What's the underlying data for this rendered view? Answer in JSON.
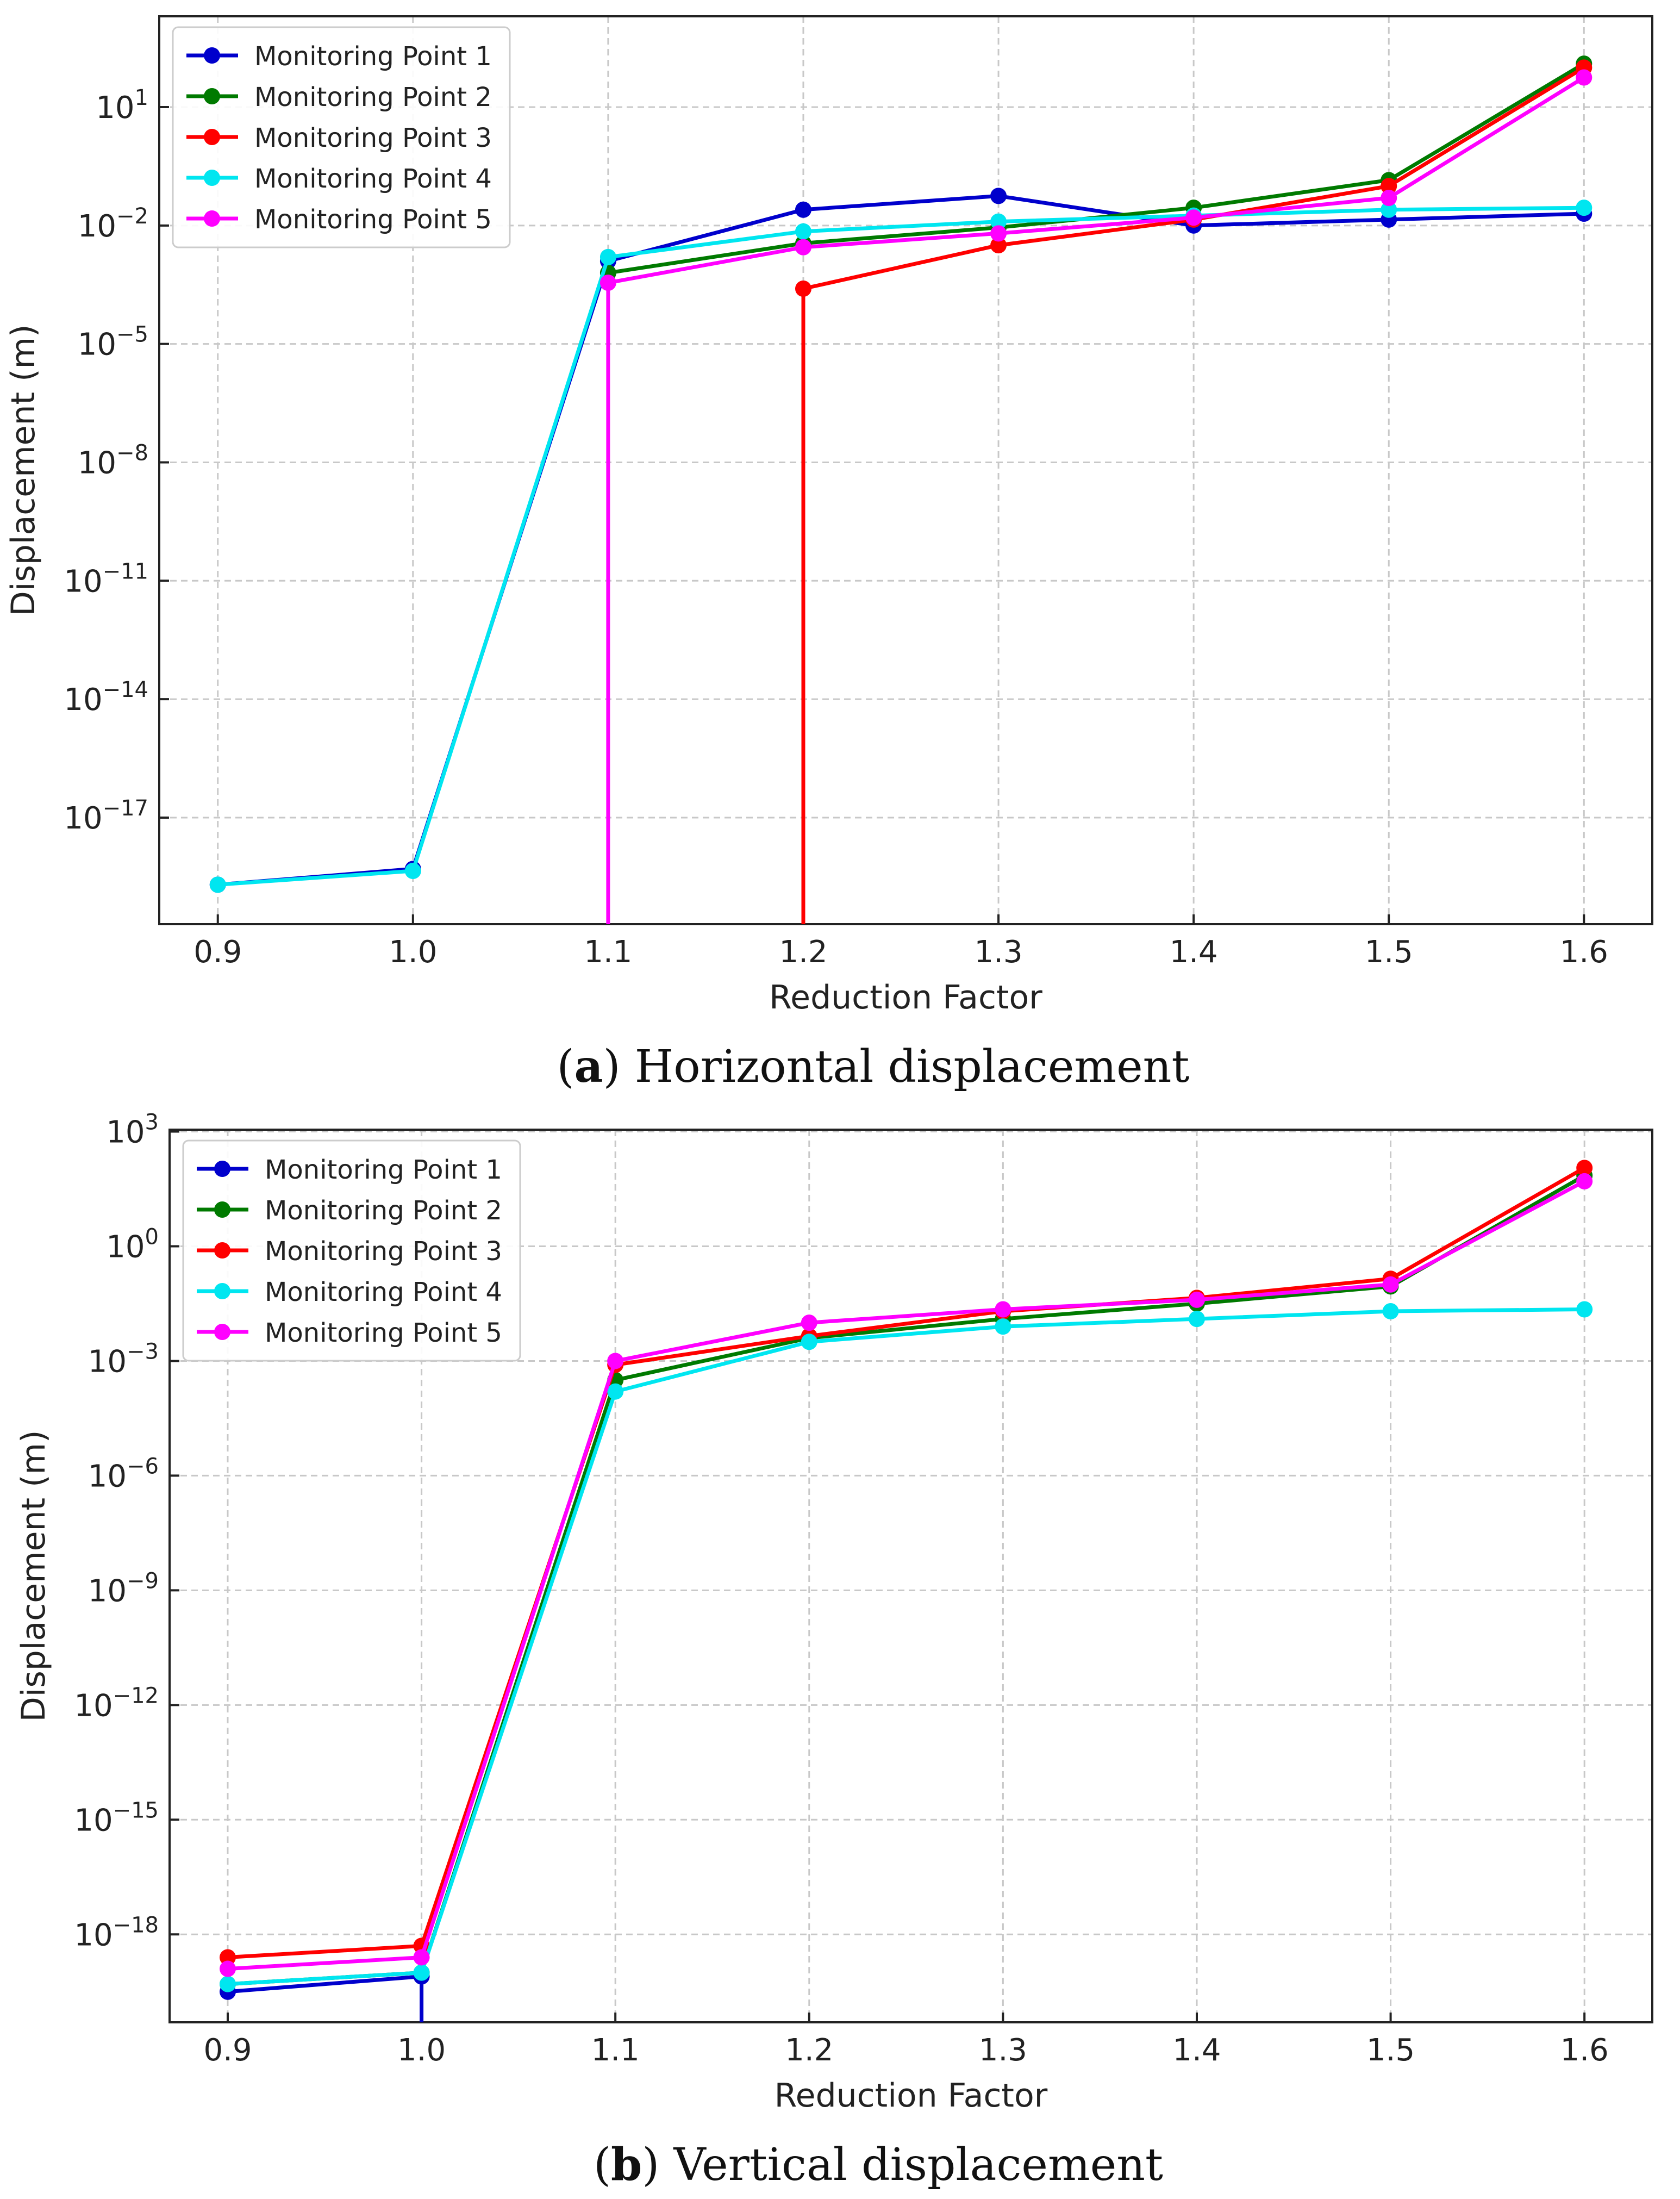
{
  "colors": {
    "Monitoring Point 1": "#0000cc",
    "Monitoring Point 2": "#007a00",
    "Monitoring Point 3": "#ff0000",
    "Monitoring Point 4": "#00e6f0",
    "Monitoring Point 5": "#ff00ff",
    "grid": "#c8c8c8"
  },
  "chart_data": [
    {
      "type": "line",
      "title": "",
      "caption": {
        "label": "a",
        "text": ") Horizontal displacement"
      },
      "xlabel": "Reduction Factor",
      "ylabel": "Displacement (m)",
      "yscale": "log",
      "xlim": [
        0.87,
        1.635
      ],
      "ylim_exp": [
        -19.7,
        3.3
      ],
      "xticks": [
        "0.9",
        "1.0",
        "1.1",
        "1.2",
        "1.3",
        "1.4",
        "1.5",
        "1.6"
      ],
      "yticks": [
        {
          "base": "10",
          "exp": "1"
        },
        {
          "base": "10",
          "exp": "−2"
        },
        {
          "base": "10",
          "exp": "−5"
        },
        {
          "base": "10",
          "exp": "−8"
        },
        {
          "base": "10",
          "exp": "−11"
        },
        {
          "base": "10",
          "exp": "−14"
        },
        {
          "base": "10",
          "exp": "−17"
        }
      ],
      "legend_position": "top-left",
      "series": [
        {
          "name": "Monitoring Point 1",
          "x": [
            0.9,
            1.0,
            1.1,
            1.2,
            1.3,
            1.4,
            1.5,
            1.6
          ],
          "log10_y": [
            -18.7,
            -18.3,
            -2.9,
            -1.6,
            -1.25,
            -2.0,
            -1.85,
            -1.7
          ]
        },
        {
          "name": "Monitoring Point 2",
          "x": [
            1.1,
            1.2,
            1.3,
            1.4,
            1.5,
            1.6
          ],
          "log10_y": [
            -3.2,
            -2.45,
            -2.05,
            -1.55,
            -0.85,
            2.1
          ]
        },
        {
          "name": "Monitoring Point 3",
          "x": [
            1.2,
            1.2,
            1.3,
            1.4,
            1.5,
            1.6
          ],
          "log10_y": [
            -19.7,
            -3.6,
            -2.5,
            -1.85,
            -1.0,
            2.0
          ]
        },
        {
          "name": "Monitoring Point 4",
          "x": [
            0.9,
            1.0,
            1.1,
            1.2,
            1.3,
            1.4,
            1.5,
            1.6
          ],
          "log10_y": [
            -18.7,
            -18.35,
            -2.8,
            -2.15,
            -1.9,
            -1.75,
            -1.6,
            -1.55
          ]
        },
        {
          "name": "Monitoring Point 5",
          "x": [
            1.1,
            1.1,
            1.2,
            1.3,
            1.4,
            1.5,
            1.6
          ],
          "log10_y": [
            -19.7,
            -3.45,
            -2.55,
            -2.2,
            -1.8,
            -1.3,
            1.75
          ]
        }
      ]
    },
    {
      "type": "line",
      "title": "",
      "caption": {
        "label": "b",
        "text": ") Vertical displacement"
      },
      "xlabel": "Reduction Factor",
      "ylabel": "Displacement (m)",
      "yscale": "log",
      "xlim": [
        0.87,
        1.635
      ],
      "ylim_exp": [
        -20.3,
        3.05
      ],
      "xticks": [
        "0.9",
        "1.0",
        "1.1",
        "1.2",
        "1.3",
        "1.4",
        "1.5",
        "1.6"
      ],
      "yticks": [
        {
          "base": "10",
          "exp": "3"
        },
        {
          "base": "10",
          "exp": "0"
        },
        {
          "base": "10",
          "exp": "−3"
        },
        {
          "base": "10",
          "exp": "−6"
        },
        {
          "base": "10",
          "exp": "−9"
        },
        {
          "base": "10",
          "exp": "−12"
        },
        {
          "base": "10",
          "exp": "−15"
        },
        {
          "base": "10",
          "exp": "−18"
        }
      ],
      "legend_position": "top-left",
      "series": [
        {
          "name": "Monitoring Point 1",
          "x": [
            0.9,
            1.0,
            1.0
          ],
          "log10_y": [
            -19.5,
            -19.1,
            -20.3
          ]
        },
        {
          "name": "Monitoring Point 2",
          "x": [
            0.9,
            1.0,
            1.1,
            1.2,
            1.3,
            1.4,
            1.5,
            1.6
          ],
          "log10_y": [
            -19.3,
            -19.0,
            -3.5,
            -2.4,
            -1.9,
            -1.5,
            -1.05,
            1.85
          ]
        },
        {
          "name": "Monitoring Point 3",
          "x": [
            0.9,
            1.0,
            1.1,
            1.2,
            1.3,
            1.4,
            1.5,
            1.6
          ],
          "log10_y": [
            -18.6,
            -18.3,
            -3.1,
            -2.35,
            -1.7,
            -1.35,
            -0.85,
            2.05
          ]
        },
        {
          "name": "Monitoring Point 4",
          "x": [
            0.9,
            1.0,
            1.1,
            1.2,
            1.3,
            1.4,
            1.5,
            1.6
          ],
          "log10_y": [
            -19.3,
            -19.0,
            -3.8,
            -2.5,
            -2.1,
            -1.9,
            -1.7,
            -1.65
          ]
        },
        {
          "name": "Monitoring Point 5",
          "x": [
            0.9,
            1.0,
            1.1,
            1.2,
            1.3,
            1.4,
            1.5,
            1.6
          ],
          "log10_y": [
            -18.9,
            -18.6,
            -3.0,
            -2.0,
            -1.65,
            -1.4,
            -1.0,
            1.7
          ]
        }
      ]
    }
  ]
}
